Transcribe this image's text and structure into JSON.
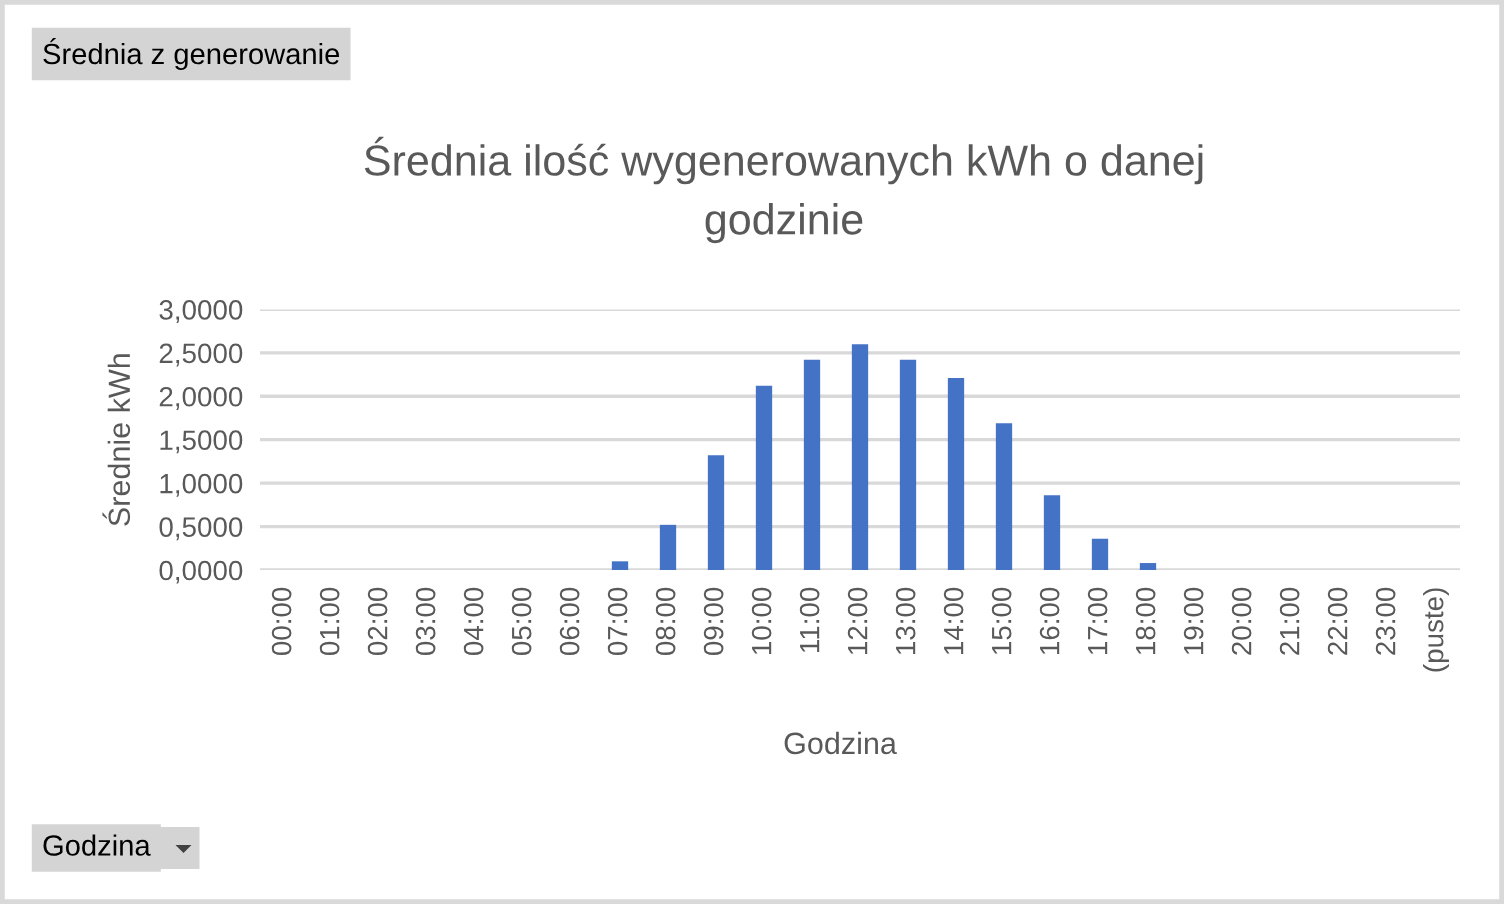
{
  "chart_data": {
    "type": "bar",
    "title": "Średnia ilość wygenerowanych kWh o danej\ngodzinie",
    "xlabel": "Godzina",
    "ylabel": "Średnie kWh",
    "categories": [
      "00:00",
      "01:00",
      "02:00",
      "03:00",
      "04:00",
      "05:00",
      "06:00",
      "07:00",
      "08:00",
      "09:00",
      "10:00",
      "11:00",
      "12:00",
      "13:00",
      "14:00",
      "15:00",
      "16:00",
      "17:00",
      "18:00",
      "19:00",
      "20:00",
      "21:00",
      "22:00",
      "23:00",
      "(puste)"
    ],
    "values": [
      0,
      0,
      0,
      0,
      0,
      0,
      0,
      0.1,
      0.52,
      1.32,
      2.12,
      2.42,
      2.6,
      2.42,
      2.21,
      1.69,
      0.86,
      0.36,
      0.08,
      0,
      0,
      0,
      0,
      0,
      null
    ],
    "color": "#4472c4",
    "ylim": [
      0,
      3
    ],
    "yticks": [
      {
        "value": 0,
        "label": "0,0000"
      },
      {
        "value": 0.5,
        "label": "0,5000"
      },
      {
        "value": 1,
        "label": "1,0000"
      },
      {
        "value": 1.5,
        "label": "1,5000"
      },
      {
        "value": 2,
        "label": "2,0000"
      },
      {
        "value": 2.5,
        "label": "2,5000"
      },
      {
        "value": 3,
        "label": "3,0000"
      }
    ],
    "grid": "y",
    "annotations": [
      "Średnia z generowanie",
      "Godzina"
    ]
  }
}
